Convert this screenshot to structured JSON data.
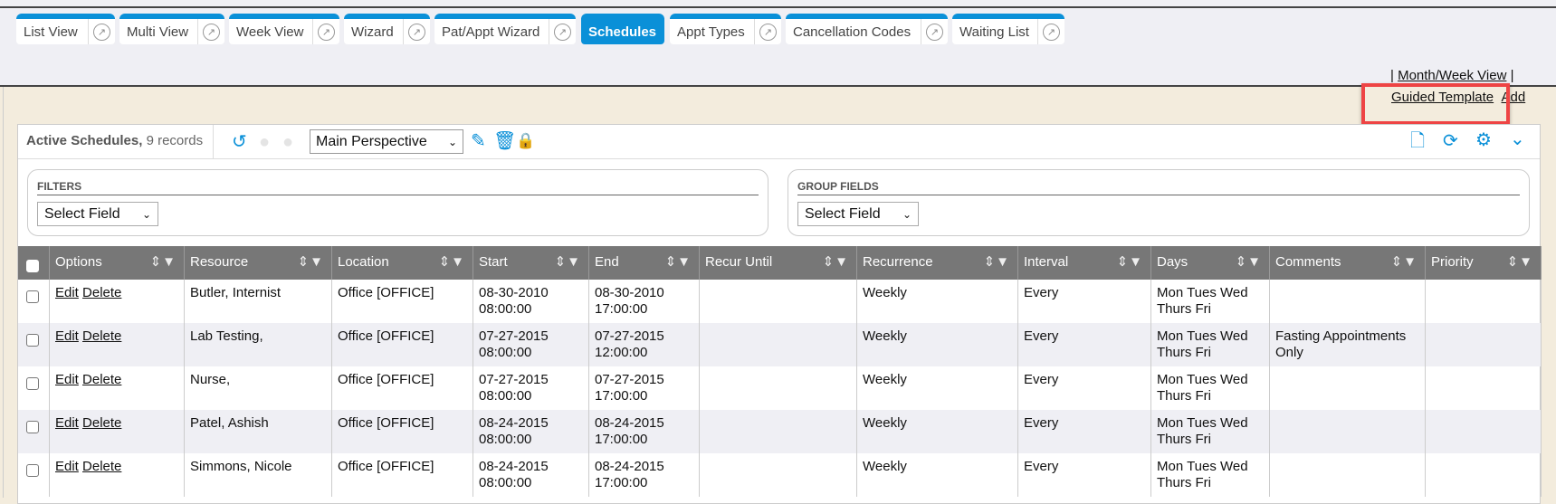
{
  "tabs": [
    {
      "label": "List View",
      "active": false
    },
    {
      "label": "Multi View",
      "active": false
    },
    {
      "label": "Week View",
      "active": false
    },
    {
      "label": "Wizard",
      "active": false
    },
    {
      "label": "Pat/Appt Wizard",
      "active": false
    },
    {
      "label": "Schedules",
      "active": true
    },
    {
      "label": "Appt Types",
      "active": false
    },
    {
      "label": "Cancellation Codes",
      "active": false
    },
    {
      "label": "Waiting List",
      "active": false
    }
  ],
  "links": {
    "sep1": "|",
    "month_week": "Month/Week View",
    "sep2": "|",
    "guided": "Guided Template",
    "add": "Add"
  },
  "toolbar": {
    "title": "Active Schedules,",
    "count": "9 records",
    "perspective": "Main Perspective",
    "icons": [
      "undo-icon",
      "prev-icon",
      "next-icon",
      "pencil-icon",
      "trash-icon",
      "lock-icon",
      "file-icon",
      "refresh-icon",
      "gear-icon",
      "chevron-down-icon"
    ]
  },
  "filters": {
    "heading": "FILTERS",
    "select": "Select Field"
  },
  "group": {
    "heading": "GROUP FIELDS",
    "select": "Select Field"
  },
  "columns": [
    "Options",
    "Resource",
    "Location",
    "Start",
    "End",
    "Recur Until",
    "Recurrence",
    "Interval",
    "Days",
    "Comments",
    "Priority"
  ],
  "rows": [
    {
      "edit": "Edit",
      "delete": "Delete",
      "resource": "Butler, Internist",
      "location": "Office [OFFICE]",
      "start_date": "08-30-2010",
      "start_time": "08:00:00",
      "end_date": "08-30-2010",
      "end_time": "17:00:00",
      "recur_until": "",
      "recurrence": "Weekly",
      "interval": "Every",
      "days1": "Mon Tues Wed",
      "days2": "Thurs Fri",
      "comments1": "",
      "comments2": "",
      "priority": ""
    },
    {
      "edit": "Edit",
      "delete": "Delete",
      "resource": "Lab Testing,",
      "location": "Office [OFFICE]",
      "start_date": "07-27-2015",
      "start_time": "08:00:00",
      "end_date": "07-27-2015",
      "end_time": "12:00:00",
      "recur_until": "",
      "recurrence": "Weekly",
      "interval": "Every",
      "days1": "Mon Tues Wed",
      "days2": "Thurs Fri",
      "comments1": "Fasting Appointments",
      "comments2": "Only",
      "priority": ""
    },
    {
      "edit": "Edit",
      "delete": "Delete",
      "resource": "Nurse,",
      "location": "Office [OFFICE]",
      "start_date": "07-27-2015",
      "start_time": "08:00:00",
      "end_date": "07-27-2015",
      "end_time": "17:00:00",
      "recur_until": "",
      "recurrence": "Weekly",
      "interval": "Every",
      "days1": "Mon Tues Wed",
      "days2": "Thurs Fri",
      "comments1": "",
      "comments2": "",
      "priority": ""
    },
    {
      "edit": "Edit",
      "delete": "Delete",
      "resource": "Patel, Ashish",
      "location": "Office [OFFICE]",
      "start_date": "08-24-2015",
      "start_time": "08:00:00",
      "end_date": "08-24-2015",
      "end_time": "17:00:00",
      "recur_until": "",
      "recurrence": "Weekly",
      "interval": "Every",
      "days1": "Mon Tues Wed",
      "days2": "Thurs Fri",
      "comments1": "",
      "comments2": "",
      "priority": ""
    },
    {
      "edit": "Edit",
      "delete": "Delete",
      "resource": "Simmons, Nicole",
      "location": "Office [OFFICE]",
      "start_date": "08-24-2015",
      "start_time": "08:00:00",
      "end_date": "08-24-2015",
      "end_time": "17:00:00",
      "recur_until": "",
      "recurrence": "Weekly",
      "interval": "Every",
      "days1": "Mon Tues Wed",
      "days2": "Thurs Fri",
      "comments1": "",
      "comments2": "",
      "priority": ""
    }
  ],
  "colors": {
    "accent": "#0a90d8",
    "header": "#777777",
    "background": "#f3ecdd",
    "highlight": "#ee4444"
  }
}
